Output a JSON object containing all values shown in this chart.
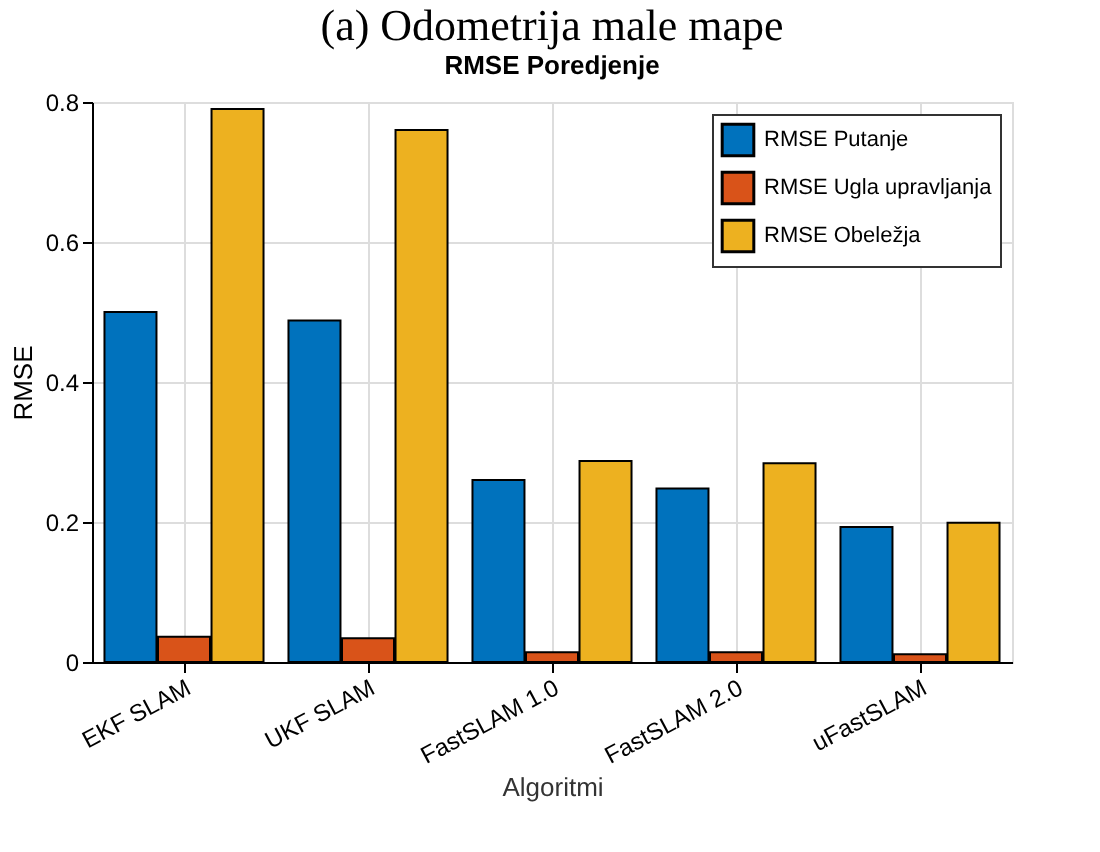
{
  "chart_data": {
    "type": "bar",
    "title": "RMSE Poredjenje",
    "xlabel": "Algoritmi",
    "ylabel": "RMSE",
    "annotations": [
      "(a) Odometrija male mape"
    ],
    "categories": [
      "EKF SLAM",
      "UKF SLAM",
      "FastSLAM 1.0",
      "FastSLAM 2.0",
      "uFastSLAM"
    ],
    "series": [
      {
        "name": "RMSE Putanje",
        "color": "#0072bd",
        "values": [
          0.5,
          0.488,
          0.26,
          0.248,
          0.193
        ]
      },
      {
        "name": "RMSE Ugla upravljanja",
        "color": "#d95319",
        "values": [
          0.036,
          0.034,
          0.014,
          0.014,
          0.011
        ]
      },
      {
        "name": "RMSE Obeležja",
        "color": "#edb120",
        "values": [
          0.79,
          0.76,
          0.287,
          0.284,
          0.199
        ]
      }
    ],
    "ylim": [
      0,
      0.8
    ],
    "yticks": [
      0,
      0.2,
      0.4,
      0.6,
      0.8
    ],
    "grid": true,
    "legend": "top right"
  }
}
